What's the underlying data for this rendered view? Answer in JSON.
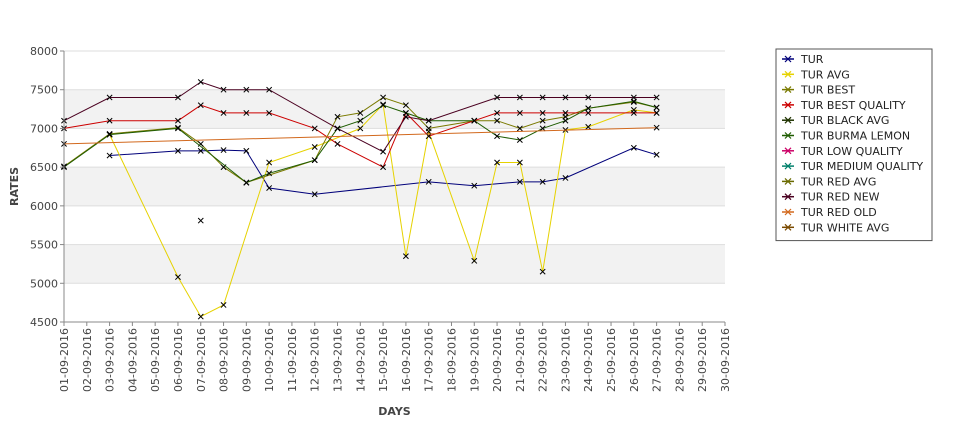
{
  "chart_data": {
    "type": "line",
    "xlabel": "DAYS",
    "ylabel": "RATES",
    "ylim": [
      4500,
      8000
    ],
    "yticks": [
      4500,
      5000,
      5500,
      6000,
      6500,
      7000,
      7500,
      8000
    ],
    "x": [
      "01-09-2016",
      "02-09-2016",
      "03-09-2016",
      "04-09-2016",
      "05-09-2016",
      "06-09-2016",
      "07-09-2016",
      "08-09-2016",
      "09-09-2016",
      "10-09-2016",
      "11-09-2016",
      "12-09-2016",
      "13-09-2016",
      "14-09-2016",
      "15-09-2016",
      "16-09-2016",
      "17-09-2016",
      "18-09-2016",
      "19-09-2016",
      "20-09-2016",
      "21-09-2016",
      "22-09-2016",
      "23-09-2016",
      "24-09-2016",
      "25-09-2016",
      "26-09-2016",
      "27-09-2016",
      "28-09-2016",
      "29-09-2016",
      "30-09-2016"
    ],
    "grid_bands": true,
    "legend_position": "right",
    "series": [
      {
        "name": "TUR",
        "color": "#00007a",
        "values": [
          null,
          null,
          6650,
          null,
          null,
          6710,
          6710,
          6720,
          6710,
          6230,
          null,
          6150,
          null,
          null,
          null,
          null,
          6310,
          null,
          6260,
          null,
          6310,
          6310,
          6360,
          null,
          null,
          6750,
          6660,
          null,
          null,
          null
        ]
      },
      {
        "name": "TUR AVG",
        "color": "#e6d200",
        "values": [
          null,
          null,
          6920,
          null,
          null,
          5080,
          4570,
          4720,
          null,
          6560,
          null,
          6760,
          null,
          7000,
          7310,
          5350,
          6960,
          null,
          5290,
          6560,
          6560,
          5150,
          6980,
          7020,
          null,
          7240,
          7200,
          null,
          null,
          null
        ]
      },
      {
        "name": "TUR BEST",
        "color": "#7a7a00",
        "values": [
          6510,
          null,
          6930,
          null,
          null,
          7010,
          6800,
          6500,
          6300,
          null,
          null,
          6590,
          7150,
          7200,
          7400,
          7300,
          7000,
          null,
          7100,
          7100,
          7000,
          7100,
          7150,
          7260,
          null,
          7340,
          7270,
          null,
          null,
          null
        ]
      },
      {
        "name": "TUR BEST QUALITY",
        "color": "#cc0000",
        "values": [
          7000,
          null,
          7100,
          null,
          null,
          7100,
          7300,
          7200,
          7200,
          7200,
          null,
          7000,
          6800,
          null,
          6500,
          7200,
          6900,
          null,
          7100,
          7200,
          7200,
          7200,
          7200,
          7200,
          null,
          7200,
          7200,
          null,
          null,
          null
        ]
      },
      {
        "name": "TUR BLACK AVG",
        "color": "#1f3300",
        "values": [
          null,
          null,
          null,
          null,
          null,
          null,
          null,
          null,
          6300,
          null,
          null,
          null,
          null,
          null,
          null,
          null,
          null,
          null,
          null,
          null,
          null,
          null,
          null,
          null,
          null,
          null,
          null,
          null,
          null,
          null
        ]
      },
      {
        "name": "TUR BURMA LEMON",
        "color": "#1e5c00",
        "values": [
          6500,
          null,
          6920,
          null,
          null,
          7000,
          null,
          null,
          6300,
          6420,
          null,
          6590,
          7000,
          7100,
          7300,
          7200,
          7100,
          null,
          7100,
          6900,
          6850,
          7000,
          7100,
          7260,
          null,
          7350,
          7270,
          null,
          null,
          null
        ]
      },
      {
        "name": "TUR LOW QUALITY",
        "color": "#cc0066",
        "values": [
          null,
          null,
          null,
          null,
          null,
          null,
          null,
          null,
          null,
          null,
          null,
          null,
          null,
          null,
          null,
          null,
          null,
          null,
          null,
          null,
          null,
          null,
          null,
          null,
          null,
          null,
          null,
          null,
          null,
          null
        ]
      },
      {
        "name": "TUR MEDIUM QUALITY",
        "color": "#00806b",
        "values": [
          null,
          null,
          null,
          null,
          null,
          null,
          null,
          null,
          null,
          null,
          null,
          null,
          null,
          null,
          null,
          null,
          null,
          null,
          null,
          null,
          null,
          null,
          null,
          null,
          null,
          null,
          null,
          null,
          null,
          null
        ]
      },
      {
        "name": "TUR RED AVG",
        "color": "#6a6a00",
        "values": [
          null,
          null,
          null,
          null,
          null,
          null,
          5810,
          null,
          null,
          null,
          null,
          null,
          null,
          null,
          null,
          null,
          null,
          null,
          null,
          null,
          null,
          null,
          null,
          null,
          null,
          null,
          null,
          null,
          null,
          null
        ]
      },
      {
        "name": "TUR RED NEW",
        "color": "#4a0020",
        "values": [
          7100,
          null,
          7400,
          null,
          null,
          7400,
          7600,
          7500,
          7500,
          7500,
          null,
          null,
          7000,
          null,
          6700,
          7150,
          7100,
          null,
          null,
          7400,
          7400,
          7400,
          7400,
          7400,
          null,
          7400,
          7400,
          null,
          null,
          null
        ]
      },
      {
        "name": "TUR RED OLD",
        "color": "#d2691e",
        "values": [
          6800,
          null,
          null,
          null,
          null,
          null,
          null,
          null,
          null,
          null,
          null,
          null,
          null,
          null,
          null,
          null,
          null,
          null,
          null,
          null,
          null,
          null,
          null,
          null,
          null,
          null,
          7010,
          null,
          null,
          null
        ]
      },
      {
        "name": "TUR WHITE AVG",
        "color": "#7a4a00",
        "values": [
          null,
          null,
          null,
          null,
          null,
          null,
          null,
          null,
          null,
          null,
          null,
          null,
          null,
          null,
          null,
          null,
          null,
          null,
          null,
          null,
          null,
          null,
          null,
          null,
          null,
          null,
          null,
          null,
          null,
          null
        ]
      }
    ]
  }
}
